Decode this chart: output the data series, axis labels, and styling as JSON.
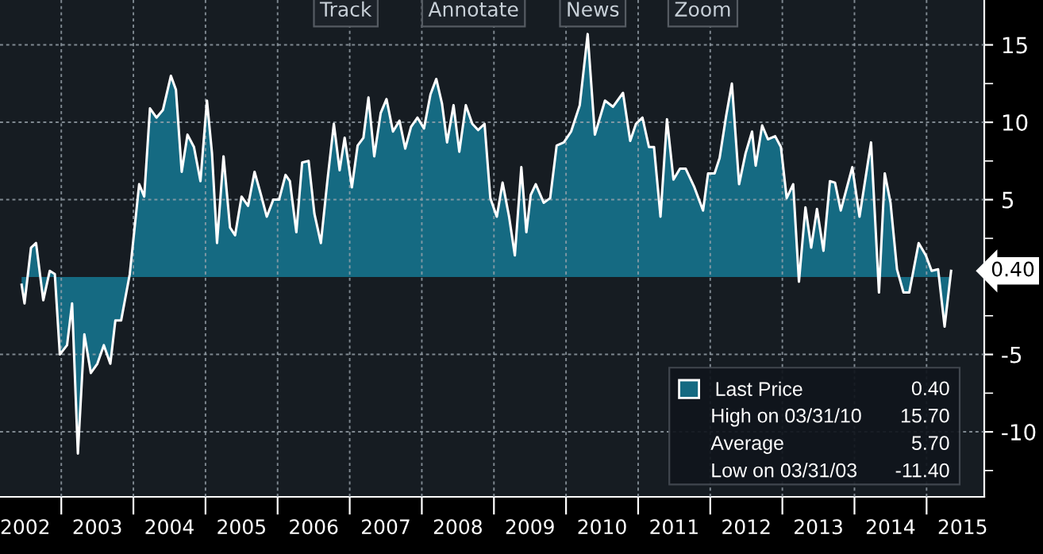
{
  "chart_data": {
    "type": "area",
    "x": [
      2002.45,
      2002.49,
      2002.58,
      2002.65,
      2002.75,
      2002.84,
      2002.91,
      2002.98,
      2003.08,
      2003.15,
      2003.23,
      2003.32,
      2003.41,
      2003.5,
      2003.59,
      2003.68,
      2003.75,
      2003.83,
      2003.95,
      2004.08,
      2004.15,
      2004.23,
      2004.32,
      2004.41,
      2004.52,
      2004.59,
      2004.67,
      2004.75,
      2004.84,
      2004.93,
      2005.02,
      2005.09,
      2005.16,
      2005.25,
      2005.34,
      2005.41,
      2005.5,
      2005.59,
      2005.68,
      2005.77,
      2005.85,
      2005.94,
      2006.02,
      2006.11,
      2006.17,
      2006.26,
      2006.34,
      2006.43,
      2006.51,
      2006.6,
      2006.69,
      2006.78,
      2006.86,
      2006.93,
      2007.03,
      2007.11,
      2007.19,
      2007.26,
      2007.34,
      2007.43,
      2007.51,
      2007.6,
      2007.69,
      2007.77,
      2007.85,
      2007.94,
      2008.03,
      2008.12,
      2008.2,
      2008.28,
      2008.35,
      2008.44,
      2008.52,
      2008.61,
      2008.7,
      2008.78,
      2008.87,
      2008.95,
      2009.04,
      2009.12,
      2009.21,
      2009.29,
      2009.38,
      2009.45,
      2009.51,
      2009.58,
      2009.69,
      2009.78,
      2009.87,
      2009.97,
      2010.07,
      2010.19,
      2010.3,
      2010.4,
      2010.54,
      2010.65,
      2010.79,
      2010.89,
      2010.97,
      2011.06,
      2011.15,
      2011.22,
      2011.31,
      2011.4,
      2011.49,
      2011.58,
      2011.66,
      2011.78,
      2011.9,
      2011.97,
      2012.06,
      2012.13,
      2012.22,
      2012.3,
      2012.4,
      2012.49,
      2012.58,
      2012.63,
      2012.72,
      2012.8,
      2012.9,
      2012.98,
      2013.06,
      2013.15,
      2013.23,
      2013.32,
      2013.4,
      2013.48,
      2013.57,
      2013.66,
      2013.73,
      2013.81,
      2013.97,
      2014.07,
      2014.23,
      2014.34,
      2014.42,
      2014.5,
      2014.59,
      2014.68,
      2014.76,
      2014.89,
      2014.99,
      2015.07,
      2015.16,
      2015.25,
      2015.34
    ],
    "series": [
      {
        "name": "Last Price",
        "color": "#156a82",
        "values": [
          -0.5,
          -1.7,
          1.9,
          2.2,
          -1.5,
          0.4,
          0.2,
          -5.0,
          -4.4,
          -1.7,
          -11.4,
          -3.7,
          -6.2,
          -5.6,
          -4.4,
          -5.6,
          -2.8,
          -2.8,
          0.2,
          6.0,
          5.2,
          10.9,
          10.3,
          10.8,
          13.0,
          12.1,
          6.8,
          9.2,
          8.4,
          6.2,
          11.4,
          8.0,
          2.2,
          7.8,
          3.2,
          2.7,
          5.2,
          4.6,
          6.8,
          5.3,
          3.9,
          5.0,
          5.0,
          6.6,
          6.2,
          2.9,
          7.4,
          7.5,
          4.1,
          2.2,
          6.2,
          9.9,
          6.9,
          9.0,
          5.8,
          8.5,
          9.0,
          11.6,
          7.8,
          10.6,
          11.5,
          9.4,
          10.1,
          8.3,
          9.7,
          10.3,
          9.6,
          11.8,
          12.8,
          11.2,
          8.7,
          11.1,
          8.1,
          11.1,
          9.9,
          9.5,
          9.9,
          5.1,
          3.9,
          6.1,
          3.9,
          1.4,
          7.1,
          2.9,
          5.3,
          6.0,
          4.8,
          5.1,
          8.5,
          8.7,
          9.4,
          11.1,
          15.7,
          9.2,
          11.4,
          11.0,
          11.9,
          8.8,
          9.9,
          10.3,
          8.4,
          8.4,
          3.9,
          10.2,
          6.3,
          7.0,
          7.0,
          5.8,
          4.3,
          6.7,
          6.7,
          7.7,
          10.4,
          12.5,
          6.0,
          8.0,
          9.4,
          7.2,
          9.8,
          8.9,
          9.1,
          8.4,
          5.1,
          6.0,
          -0.3,
          4.5,
          1.9,
          4.4,
          1.7,
          6.2,
          6.1,
          4.3,
          7.1,
          3.9,
          8.7,
          -1.0,
          6.7,
          4.8,
          0.5,
          -1.0,
          -1.0,
          2.2,
          1.4,
          0.4,
          0.5,
          -3.2,
          0.4
        ]
      }
    ],
    "xlim": [
      2002.15,
      2015.8
    ],
    "xticks": [
      {
        "value": 2002.5,
        "label": "2002"
      },
      {
        "value": 2003,
        "label": null
      },
      {
        "value": 2003.5,
        "label": "2003"
      },
      {
        "value": 2004,
        "label": null
      },
      {
        "value": 2004.5,
        "label": "2004"
      },
      {
        "value": 2005,
        "label": null
      },
      {
        "value": 2005.5,
        "label": "2005"
      },
      {
        "value": 2006,
        "label": null
      },
      {
        "value": 2006.5,
        "label": "2006"
      },
      {
        "value": 2007,
        "label": null
      },
      {
        "value": 2007.5,
        "label": "2007"
      },
      {
        "value": 2008,
        "label": null
      },
      {
        "value": 2008.5,
        "label": "2008"
      },
      {
        "value": 2009,
        "label": null
      },
      {
        "value": 2009.5,
        "label": "2009"
      },
      {
        "value": 2010,
        "label": null
      },
      {
        "value": 2010.5,
        "label": "2010"
      },
      {
        "value": 2011,
        "label": null
      },
      {
        "value": 2011.5,
        "label": "2011"
      },
      {
        "value": 2012,
        "label": null
      },
      {
        "value": 2012.5,
        "label": "2012"
      },
      {
        "value": 2013,
        "label": null
      },
      {
        "value": 2013.5,
        "label": "2013"
      },
      {
        "value": 2014,
        "label": null
      },
      {
        "value": 2014.5,
        "label": "2014"
      },
      {
        "value": 2015,
        "label": null
      },
      {
        "value": 2015.5,
        "label": "2015"
      }
    ],
    "ylim": [
      -14.2,
      17.9
    ],
    "yticks": [
      {
        "value": -12.5,
        "label": null
      },
      {
        "value": -10,
        "label": "-10"
      },
      {
        "value": -7.5,
        "label": null
      },
      {
        "value": -5,
        "label": "-5"
      },
      {
        "value": -2.5,
        "label": null
      },
      {
        "value": 0,
        "label": null
      },
      {
        "value": 2.5,
        "label": null
      },
      5,
      {
        "value": 7.5,
        "label": null
      },
      10,
      {
        "value": 12.5,
        "label": null
      },
      15
    ],
    "grid": true,
    "legend": "bottom right",
    "annotations": [
      {
        "text": "0.40",
        "x": 2015.34,
        "y": 0.4
      },
      "0.40",
      "High on 03/31/10",
      "15.70",
      "Average",
      "5.70",
      "Low on 03/31/03",
      "-11.40",
      "Track",
      "Annotate",
      "News",
      "Zoom"
    ]
  }
}
